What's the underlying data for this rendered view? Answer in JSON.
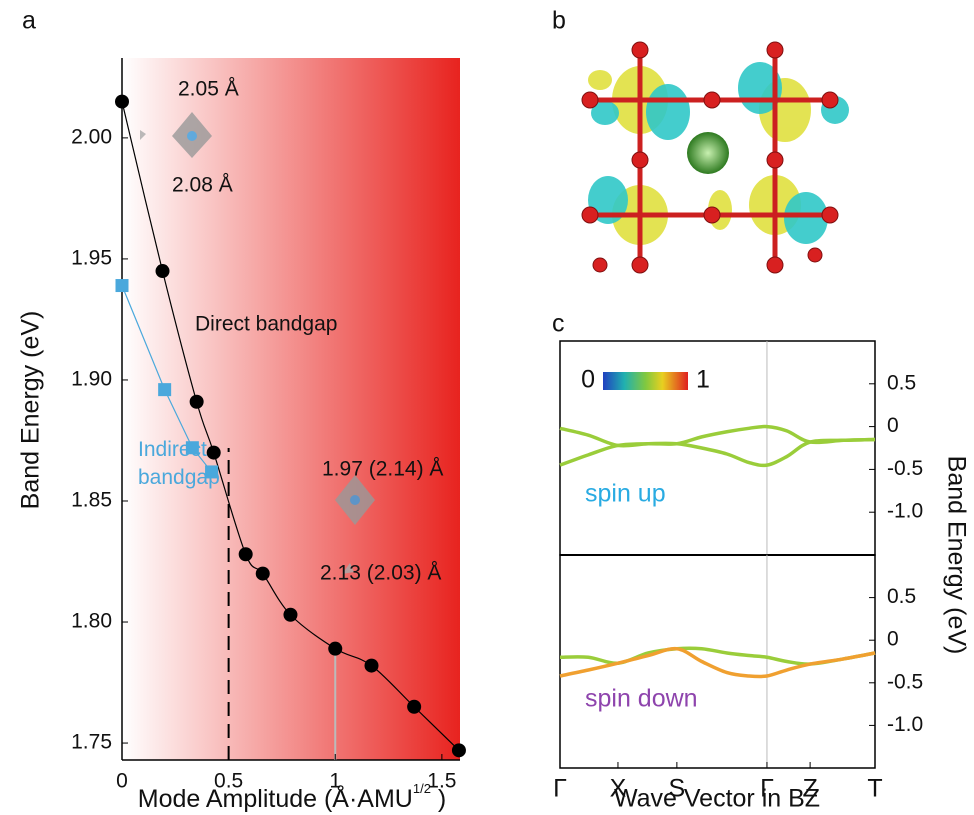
{
  "panel_labels": [
    "a",
    "b",
    "c"
  ],
  "chart_data": [
    {
      "type": "line",
      "xlabel": [
        "Mode Amplitude (Å·AMU",
        "1/2",
        " )"
      ],
      "ylabel": "Band Energy (eV)",
      "xlim": [
        0,
        1.585
      ],
      "ylim": [
        1.743,
        2.033
      ],
      "xticks": [
        0,
        0.5,
        1,
        1.5
      ],
      "yticks": [
        {
          "value": 1.75,
          "label": "1.75"
        },
        {
          "value": 1.8,
          "label": "1.80"
        },
        {
          "value": 1.85,
          "label": "1.85"
        },
        {
          "value": 1.9,
          "label": "1.90"
        },
        {
          "value": 1.95,
          "label": "1.95"
        },
        {
          "value": 2,
          "label": "2.00"
        }
      ],
      "vlines": [
        0.5,
        1
      ],
      "series": [
        {
          "name": "Direct bandgap",
          "color": "#000000",
          "marker": "circle",
          "x": [
            0,
            0.19,
            0.35,
            0.43,
            0.58,
            0.66,
            0.79,
            1.0,
            1.17,
            1.37,
            1.58
          ],
          "values": [
            2.015,
            1.945,
            1.891,
            1.87,
            1.828,
            1.82,
            1.803,
            1.789,
            1.782,
            1.765,
            1.747
          ]
        },
        {
          "name": "Indirect bandgap",
          "color": "#4aa8dc",
          "marker": "square",
          "x": [
            0,
            0.2,
            0.33,
            0.42
          ],
          "values": [
            1.939,
            1.896,
            1.872,
            1.862
          ]
        }
      ],
      "annotations": [
        "2.05 Å",
        "2.08 Å",
        "1.97 (2.14) Å",
        "2.13 (2.03) Å"
      ]
    },
    {
      "type": "line",
      "annotation": "spin up",
      "annotation_color": "#29abe2",
      "colorbar_ticks": [
        0,
        1
      ],
      "xlim": [
        0,
        1
      ],
      "ylim": [
        -1.5,
        1.0
      ],
      "yticks": [
        0.5,
        0,
        -0.5,
        {
          "value": -1,
          "label": "-1.0"
        }
      ],
      "vlines": [
        0.657
      ],
      "ylabel": "Band Energy (eV)",
      "x": [
        0,
        0.09,
        0.184,
        0.28,
        0.371,
        0.45,
        0.53,
        0.6,
        0.657,
        0.72,
        0.794,
        0.9,
        1
      ],
      "series": [
        {
          "color": "#9acd3a",
          "values": [
            -0.02,
            -0.1,
            -0.22,
            -0.2,
            -0.2,
            -0.12,
            -0.06,
            -0.02,
            0,
            -0.05,
            -0.18,
            -0.16,
            -0.15
          ]
        },
        {
          "color": "#9acd3a",
          "values": [
            -0.45,
            -0.33,
            -0.22,
            -0.2,
            -0.2,
            -0.25,
            -0.32,
            -0.42,
            -0.45,
            -0.35,
            -0.18,
            -0.16,
            -0.15
          ]
        }
      ]
    },
    {
      "type": "line",
      "annotation": "spin down",
      "annotation_color": "#8e44ad",
      "xlim": [
        0,
        1
      ],
      "ylim": [
        -1.5,
        1.0
      ],
      "yticks": [
        0.5,
        0,
        -0.5,
        {
          "value": -1,
          "label": "-1.0"
        }
      ],
      "vlines": [
        0.657
      ],
      "xlabel": "Wave Vector in BZ",
      "xticks": [
        {
          "value": 0,
          "label": "Γ"
        },
        {
          "value": 0.184,
          "label": "X"
        },
        {
          "value": 0.371,
          "label": "S"
        },
        {
          "value": 0.657,
          "label": "Γ"
        },
        {
          "value": 0.794,
          "label": "Z"
        },
        {
          "value": 1,
          "label": "T"
        }
      ],
      "x": [
        0,
        0.09,
        0.184,
        0.28,
        0.371,
        0.45,
        0.53,
        0.6,
        0.657,
        0.72,
        0.794,
        0.9,
        1
      ],
      "series": [
        {
          "color": "#9acd3a",
          "values": [
            -0.2,
            -0.2,
            -0.27,
            -0.15,
            -0.1,
            -0.1,
            -0.15,
            -0.18,
            -0.2,
            -0.25,
            -0.28,
            -0.22,
            -0.15
          ]
        },
        {
          "color": "#f0a030",
          "values": [
            -0.42,
            -0.35,
            -0.27,
            -0.18,
            -0.1,
            -0.25,
            -0.38,
            -0.42,
            -0.42,
            -0.35,
            -0.28,
            -0.22,
            -0.15
          ]
        }
      ]
    }
  ]
}
